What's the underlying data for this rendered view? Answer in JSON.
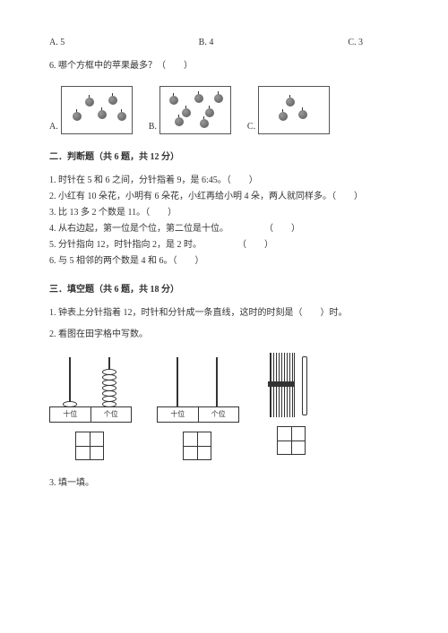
{
  "q5": {
    "optA": "A. 5",
    "optB": "B. 4",
    "optC": "C. 3"
  },
  "q6": {
    "text": "6. 哪个方框中的苹果最多？（　　）",
    "a": "A.",
    "b": "B.",
    "c": "C.",
    "apples_a": [
      [
        12,
        28
      ],
      [
        26,
        12
      ],
      [
        40,
        26
      ],
      [
        52,
        10
      ],
      [
        62,
        28
      ]
    ],
    "apples_b": [
      [
        10,
        10
      ],
      [
        24,
        24
      ],
      [
        38,
        8
      ],
      [
        50,
        24
      ],
      [
        60,
        8
      ],
      [
        16,
        34
      ],
      [
        44,
        36
      ]
    ],
    "apples_c": [
      [
        30,
        12
      ],
      [
        22,
        28
      ],
      [
        44,
        26
      ]
    ]
  },
  "sec2": {
    "title": "二．判断题（共 6 题，共 12 分）",
    "items": [
      "1. 时针在 5 和 6 之间，分针指着 9，是 6:45。（　　）",
      "2. 小红有 10 朵花，小明有 6 朵花，小红再给小明 4 朵，两人就同样多。（　　）",
      "3. 比 13 多 2 个数是 11。（　　）",
      "4. 从右边起，第一位是个位，第二位是十位。　　　　　（　　）",
      "5. 分针指向 12，时针指向 2，是 2 时。　　　　　（　　）",
      "6. 与 5 相邻的两个数是 4 和 6。（　　）"
    ]
  },
  "sec3": {
    "title": "三．填空题（共 6 题，共 18 分）",
    "q1": "1. 钟表上分针指着 12，时针和分针成一条直线，这时的时刻是（　　）时。",
    "q2": "2. 看图在田字格中写数。",
    "q3": "3. 填一填。",
    "shi": "十位",
    "ge": "个位",
    "beads_left_l": 1,
    "beads_left_r": 7,
    "beads_mid_l": 0,
    "beads_mid_r": 0
  }
}
